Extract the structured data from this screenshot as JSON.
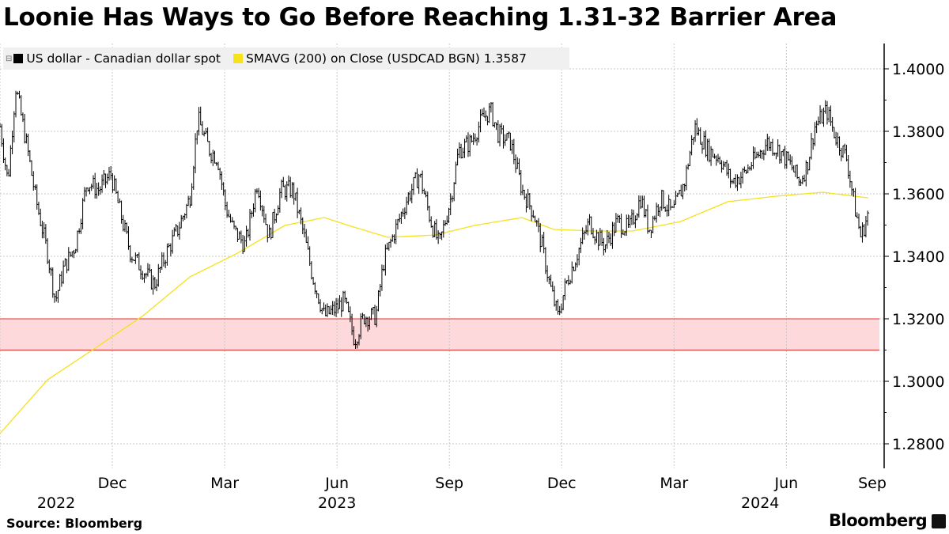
{
  "title": "Loonie Has Ways to Go Before Reaching 1.31-32 Barrier Area",
  "source": "Source: Bloomberg",
  "brand": "Bloomberg",
  "legend": {
    "series1": "US dollar - Canadian dollar spot",
    "series2": "SMAVG (200)  on Close (USDCAD BGN) 1.3587"
  },
  "colors": {
    "spot": "#000000",
    "sma": "#f5e21b",
    "band_line": "#e8312a",
    "band_fill": "#fdd9db",
    "grid": "#c8c8c8"
  },
  "chart_data": {
    "type": "line",
    "title": "Loonie Has Ways to Go Before Reaching 1.31-32 Barrier Area",
    "x_unit": "months since 2022-09-01",
    "ylim": [
      1.272,
      1.409
    ],
    "yticks": [
      "1.2800",
      "1.3000",
      "1.3200",
      "1.3400",
      "1.3600",
      "1.3800",
      "1.4000"
    ],
    "ytick_values": [
      1.28,
      1.3,
      1.32,
      1.34,
      1.36,
      1.38,
      1.4
    ],
    "xticks": [
      {
        "label": "Dec",
        "month": 3
      },
      {
        "label": "Mar",
        "month": 6
      },
      {
        "label": "Jun",
        "month": 9
      },
      {
        "label": "Sep",
        "month": 12
      },
      {
        "label": "Dec",
        "month": 15
      },
      {
        "label": "Mar",
        "month": 18
      },
      {
        "label": "Jun",
        "month": 21
      },
      {
        "label": "Sep",
        "month": 24
      }
    ],
    "years": [
      {
        "label": "2022",
        "month": 1.5
      },
      {
        "label": "2023",
        "month": 9
      },
      {
        "label": "2024",
        "month": 20.3
      }
    ],
    "band": {
      "low": 1.31,
      "high": 1.32
    },
    "grid": true,
    "legend_position": "top-left",
    "series": [
      {
        "name": "US dollar - Canadian dollar spot",
        "points": [
          [
            0,
            1.3815
          ],
          [
            0.21,
            1.3638
          ],
          [
            0.42,
            1.3942
          ],
          [
            0.74,
            1.3739
          ],
          [
            0.95,
            1.3587
          ],
          [
            1.27,
            1.341
          ],
          [
            1.48,
            1.3258
          ],
          [
            1.69,
            1.3359
          ],
          [
            2.01,
            1.3435
          ],
          [
            2.32,
            1.3638
          ],
          [
            2.64,
            1.3613
          ],
          [
            2.96,
            1.3663
          ],
          [
            3.27,
            1.3511
          ],
          [
            3.49,
            1.341
          ],
          [
            3.8,
            1.3359
          ],
          [
            4.12,
            1.3309
          ],
          [
            4.44,
            1.341
          ],
          [
            4.75,
            1.3486
          ],
          [
            5.07,
            1.3587
          ],
          [
            5.28,
            1.3841
          ],
          [
            5.6,
            1.3739
          ],
          [
            5.81,
            1.3714
          ],
          [
            6.02,
            1.3562
          ],
          [
            6.23,
            1.3486
          ],
          [
            6.55,
            1.3435
          ],
          [
            6.87,
            1.3638
          ],
          [
            7.18,
            1.3461
          ],
          [
            7.5,
            1.3613
          ],
          [
            7.82,
            1.3613
          ],
          [
            8.13,
            1.3461
          ],
          [
            8.35,
            1.3334
          ],
          [
            8.66,
            1.3208
          ],
          [
            8.98,
            1.3233
          ],
          [
            9.19,
            1.3258
          ],
          [
            9.47,
            1.3132
          ],
          [
            9.72,
            1.3208
          ],
          [
            10.04,
            1.3208
          ],
          [
            10.25,
            1.3385
          ],
          [
            10.56,
            1.3486
          ],
          [
            10.88,
            1.3587
          ],
          [
            11.2,
            1.3663
          ],
          [
            11.51,
            1.3511
          ],
          [
            11.73,
            1.3435
          ],
          [
            12.04,
            1.3587
          ],
          [
            12.25,
            1.3739
          ],
          [
            12.57,
            1.3765
          ],
          [
            12.89,
            1.3841
          ],
          [
            13.1,
            1.3866
          ],
          [
            13.31,
            1.379
          ],
          [
            13.63,
            1.3765
          ],
          [
            13.94,
            1.3613
          ],
          [
            14.26,
            1.3537
          ],
          [
            14.47,
            1.3435
          ],
          [
            14.68,
            1.3309
          ],
          [
            14.9,
            1.3208
          ],
          [
            15.11,
            1.3309
          ],
          [
            15.42,
            1.341
          ],
          [
            15.74,
            1.3511
          ],
          [
            15.95,
            1.3461
          ],
          [
            16.16,
            1.3435
          ],
          [
            16.48,
            1.3511
          ],
          [
            16.8,
            1.3486
          ],
          [
            17.11,
            1.3587
          ],
          [
            17.33,
            1.3486
          ],
          [
            17.64,
            1.3587
          ],
          [
            17.96,
            1.3537
          ],
          [
            18.28,
            1.3638
          ],
          [
            18.55,
            1.3815
          ],
          [
            18.91,
            1.3739
          ],
          [
            19.23,
            1.3714
          ],
          [
            19.54,
            1.3638
          ],
          [
            19.86,
            1.3663
          ],
          [
            20.18,
            1.3714
          ],
          [
            20.49,
            1.3765
          ],
          [
            20.81,
            1.3739
          ],
          [
            21.13,
            1.3689
          ],
          [
            21.34,
            1.3638
          ],
          [
            21.55,
            1.3689
          ],
          [
            21.76,
            1.3815
          ],
          [
            22.08,
            1.3866
          ],
          [
            22.29,
            1.379
          ],
          [
            22.61,
            1.3714
          ],
          [
            22.82,
            1.3562
          ],
          [
            22.99,
            1.3461
          ],
          [
            23.18,
            1.3537
          ]
        ]
      },
      {
        "name": "SMAVG (200) on Close",
        "points": [
          [
            0,
            1.2833
          ],
          [
            1.27,
            1.3005
          ],
          [
            2.54,
            1.3106
          ],
          [
            3.8,
            1.3208
          ],
          [
            5.07,
            1.3334
          ],
          [
            6.34,
            1.341
          ],
          [
            7.61,
            1.3499
          ],
          [
            8.66,
            1.3524
          ],
          [
            9.3,
            1.3499
          ],
          [
            10.35,
            1.3461
          ],
          [
            11.62,
            1.3468
          ],
          [
            12.68,
            1.3499
          ],
          [
            13.94,
            1.3524
          ],
          [
            14.79,
            1.3486
          ],
          [
            15.85,
            1.3481
          ],
          [
            16.9,
            1.3481
          ],
          [
            18.17,
            1.3511
          ],
          [
            19.44,
            1.3575
          ],
          [
            20.7,
            1.3592
          ],
          [
            21.97,
            1.3605
          ],
          [
            23.18,
            1.3587
          ]
        ]
      }
    ]
  }
}
